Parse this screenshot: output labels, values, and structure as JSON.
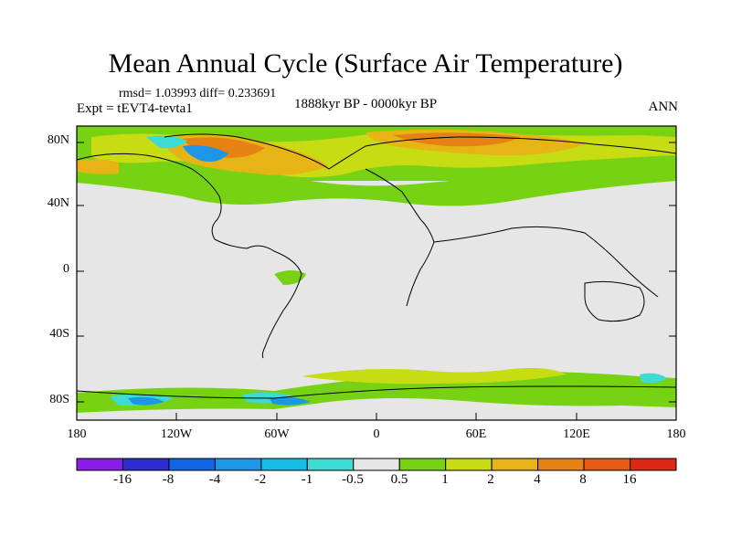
{
  "title": "Mean Annual Cycle (Surface Air Temperature)",
  "stats": "rmsd= 1.03993 diff= 0.233691",
  "experiment": "Expt = tEVT4-tevta1",
  "period": "1888kyr BP - 0000kyr BP",
  "season": "ANN",
  "lat_ticks": [
    "80N",
    "40N",
    "0",
    "40S",
    "80S"
  ],
  "lon_ticks": [
    "180",
    "120W",
    "60W",
    "0",
    "60E",
    "120E",
    "180"
  ],
  "colorbar": {
    "labels": [
      "-16",
      "-8",
      "-4",
      "-2",
      "-1",
      "-0.5",
      "0.5",
      "1",
      "2",
      "4",
      "8",
      "16"
    ],
    "colors": [
      "#8a1ee6",
      "#2d2dd2",
      "#1464e6",
      "#1e96e6",
      "#14bee6",
      "#3cdcd2",
      "#e6e6e6",
      "#78d214",
      "#c8dc14",
      "#e6b414",
      "#e68214",
      "#e65a14",
      "#dc2814"
    ]
  }
}
